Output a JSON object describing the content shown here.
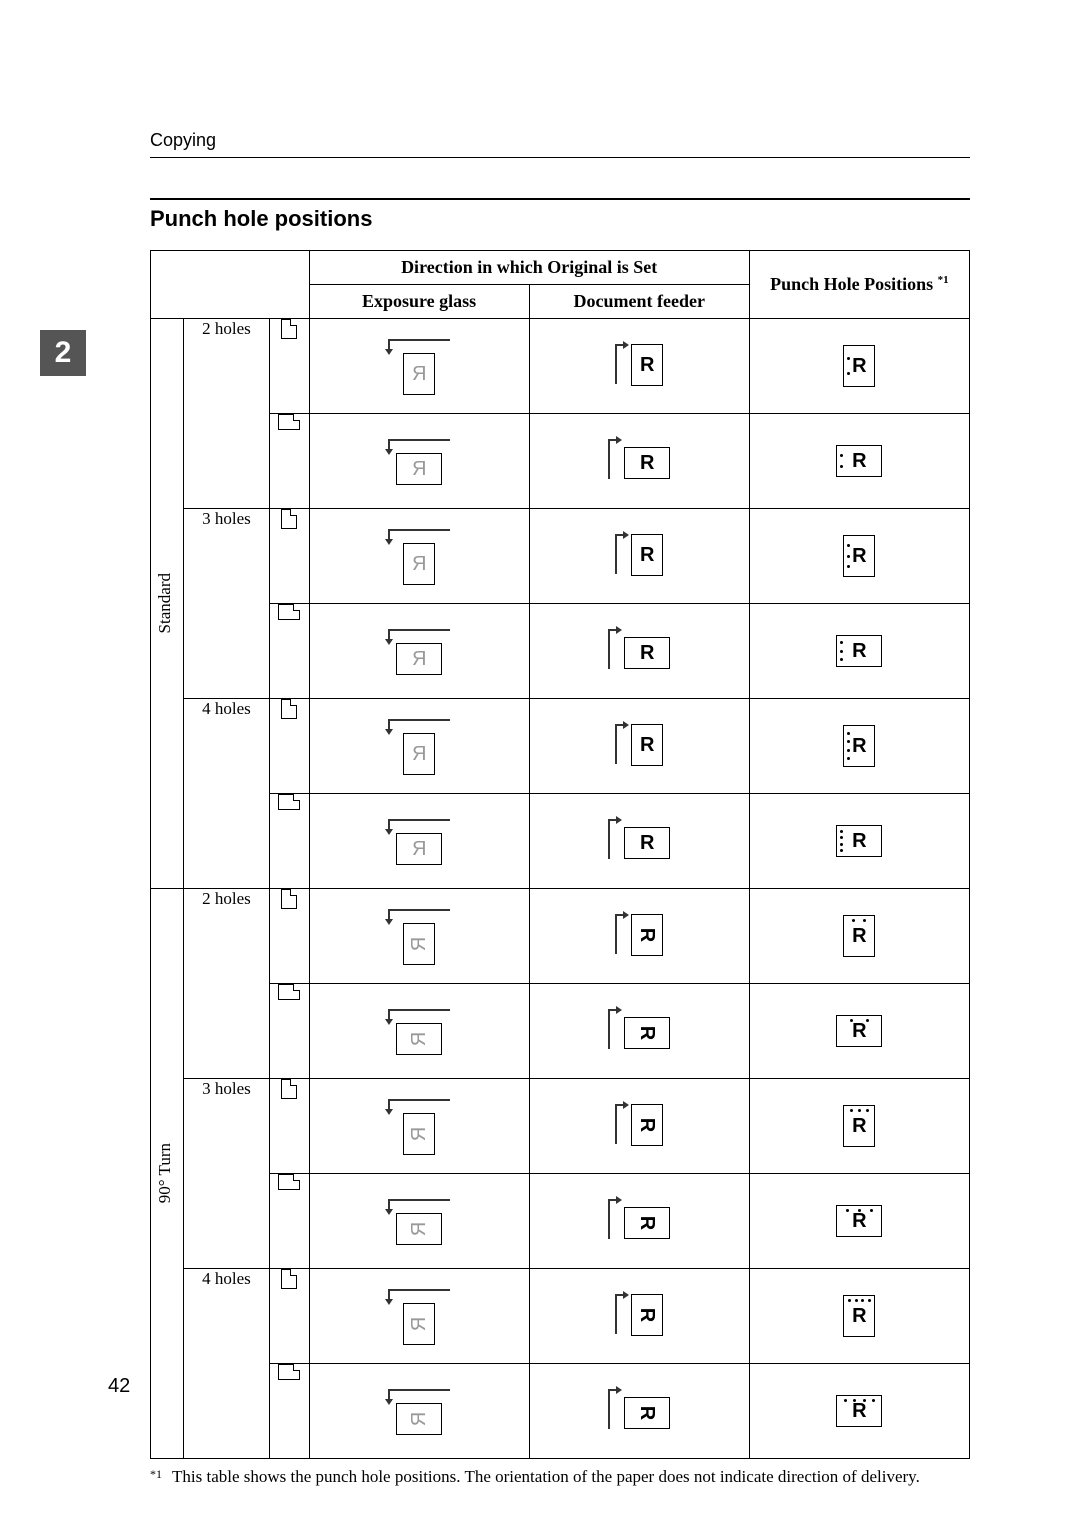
{
  "page": {
    "running_head": "Copying",
    "number": "42",
    "chapter_tab": "2"
  },
  "section": {
    "title": "Punch hole positions"
  },
  "table": {
    "header": {
      "direction": "Direction in which Original is Set",
      "exposure": "Exposure glass",
      "feeder": "Document feeder",
      "result": "Punch Hole Positions ",
      "result_sup": "*1"
    },
    "categories": [
      {
        "label": "Standard",
        "rotated": false
      },
      {
        "label": "90° Turn",
        "rotated": true
      }
    ],
    "hole_groups": [
      "2 holes",
      "3 holes",
      "4 holes"
    ],
    "orientations": [
      "portrait",
      "landscape"
    ]
  },
  "footnote": {
    "mark": "*1",
    "text": "This table shows the punch hole positions. The orientation of the paper does not indicate direction of delivery."
  }
}
